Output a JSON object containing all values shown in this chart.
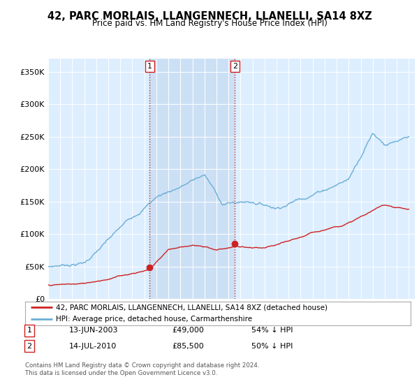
{
  "title": "42, PARC MORLAIS, LLANGENNECH, LLANELLI, SA14 8XZ",
  "subtitle": "Price paid vs. HM Land Registry's House Price Index (HPI)",
  "hpi_color": "#6baed6",
  "price_color": "#cc2222",
  "marker_color": "#cc2222",
  "background_color": "#ffffff",
  "plot_bg_color": "#ddeeff",
  "shaded_color": "#cce0f5",
  "grid_color": "#ffffff",
  "ylim": [
    0,
    370000
  ],
  "yticks": [
    0,
    50000,
    100000,
    150000,
    200000,
    250000,
    300000,
    350000
  ],
  "ytick_labels": [
    "£0",
    "£50K",
    "£100K",
    "£150K",
    "£200K",
    "£250K",
    "£300K",
    "£350K"
  ],
  "transaction1": {
    "date_num": 2003.45,
    "price": 49000,
    "label": "1"
  },
  "transaction2": {
    "date_num": 2010.54,
    "price": 85500,
    "label": "2"
  },
  "annotation1_box": {
    "date": "13-JUN-2003",
    "price": "£49,000",
    "pct": "54% ↓ HPI"
  },
  "annotation2_box": {
    "date": "14-JUL-2010",
    "price": "£85,500",
    "pct": "50% ↓ HPI"
  },
  "legend_line1": "42, PARC MORLAIS, LLANGENNECH, LLANELLI, SA14 8XZ (detached house)",
  "legend_line2": "HPI: Average price, detached house, Carmarthenshire",
  "footer": "Contains HM Land Registry data © Crown copyright and database right 2024.\nThis data is licensed under the Open Government Licence v3.0.",
  "vline_color": "#cc2222",
  "vline_style": ":"
}
